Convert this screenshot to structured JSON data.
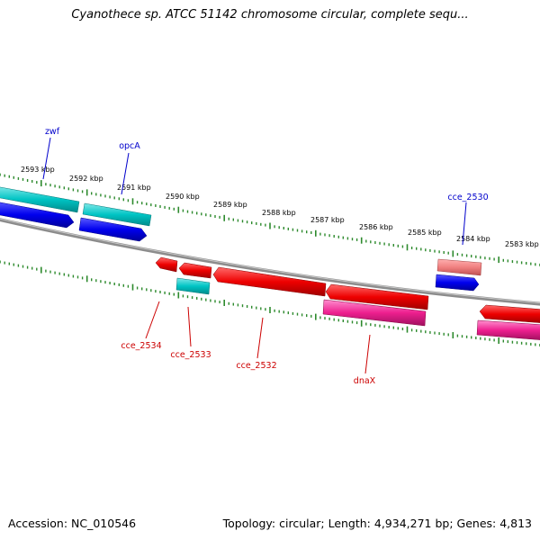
{
  "title": "Cyanothece sp. ATCC 51142 chromosome circular, complete sequ...",
  "footer": {
    "accession": "Accession: NC_010546",
    "topology": "Topology: circular; Length: 4,934,271 bp; Genes: 4,813"
  },
  "colors": {
    "backbone": "#8c8c8c",
    "ticks": "#2d8a2d",
    "forward_label": "#0000cc",
    "reverse_label": "#cc0000",
    "cds": "#ee0000",
    "trna": "#00c4c4",
    "blue_feature": "#0000ee",
    "pink_feature": "#ee1f8f",
    "salmon_feature": "#f08080"
  },
  "kbp_labels": [
    "2593 kbp",
    "2592 kbp",
    "2591 kbp",
    "2590 kbp",
    "2589 kbp",
    "2588 kbp",
    "2587 kbp",
    "2586 kbp",
    "2585 kbp",
    "2584 kbp",
    "2583 kbp"
  ],
  "gene_labels": {
    "zwf": "zwf",
    "opcA": "opcA",
    "cce_2530": "cce_2530",
    "cce_2534": "cce_2534",
    "cce_2533": "cce_2533",
    "cce_2532": "cce_2532",
    "dnaX": "dnaX"
  }
}
